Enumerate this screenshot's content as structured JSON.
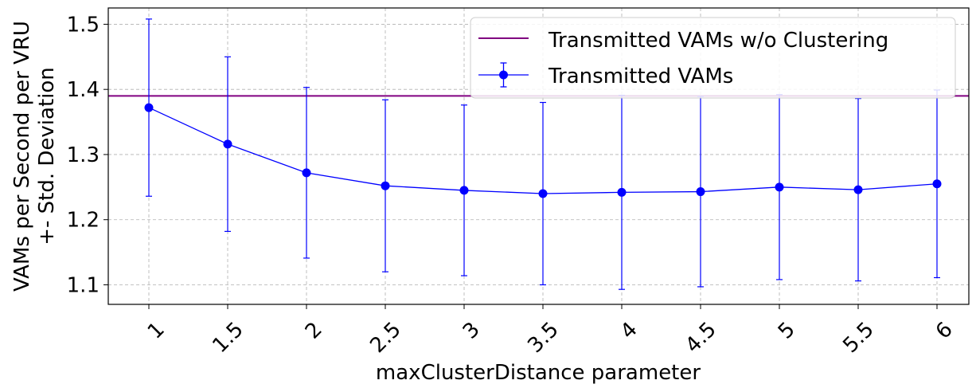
{
  "chart_data": {
    "type": "line",
    "xlabel": "maxClusterDistance parameter",
    "ylabel_line1": "VAMs per Second per VRU",
    "ylabel_line2": "+- Std. Deviation",
    "categories": [
      "1",
      "1.5",
      "2",
      "2.5",
      "3",
      "3.5",
      "4",
      "4.5",
      "5",
      "5.5",
      "6"
    ],
    "ylim": [
      1.07,
      1.525
    ],
    "yticks": [
      1.1,
      1.2,
      1.3,
      1.4,
      1.5
    ],
    "ytick_labels": [
      "1.1",
      "1.2",
      "1.3",
      "1.4",
      "1.5"
    ],
    "grid": true,
    "legend_position": "upper-right",
    "series": [
      {
        "name": "Transmitted VAMs",
        "kind": "errorbar",
        "color": "#0000ff",
        "values": [
          1.372,
          1.316,
          1.272,
          1.252,
          1.245,
          1.24,
          1.242,
          1.243,
          1.25,
          1.246,
          1.255
        ],
        "errors": [
          0.136,
          0.134,
          0.131,
          0.132,
          0.131,
          0.14,
          0.149,
          0.146,
          0.142,
          0.14,
          0.144
        ]
      }
    ],
    "reference_line": {
      "name": "Transmitted VAMs w/o Clustering",
      "value": 1.39,
      "color": "#800080"
    }
  }
}
